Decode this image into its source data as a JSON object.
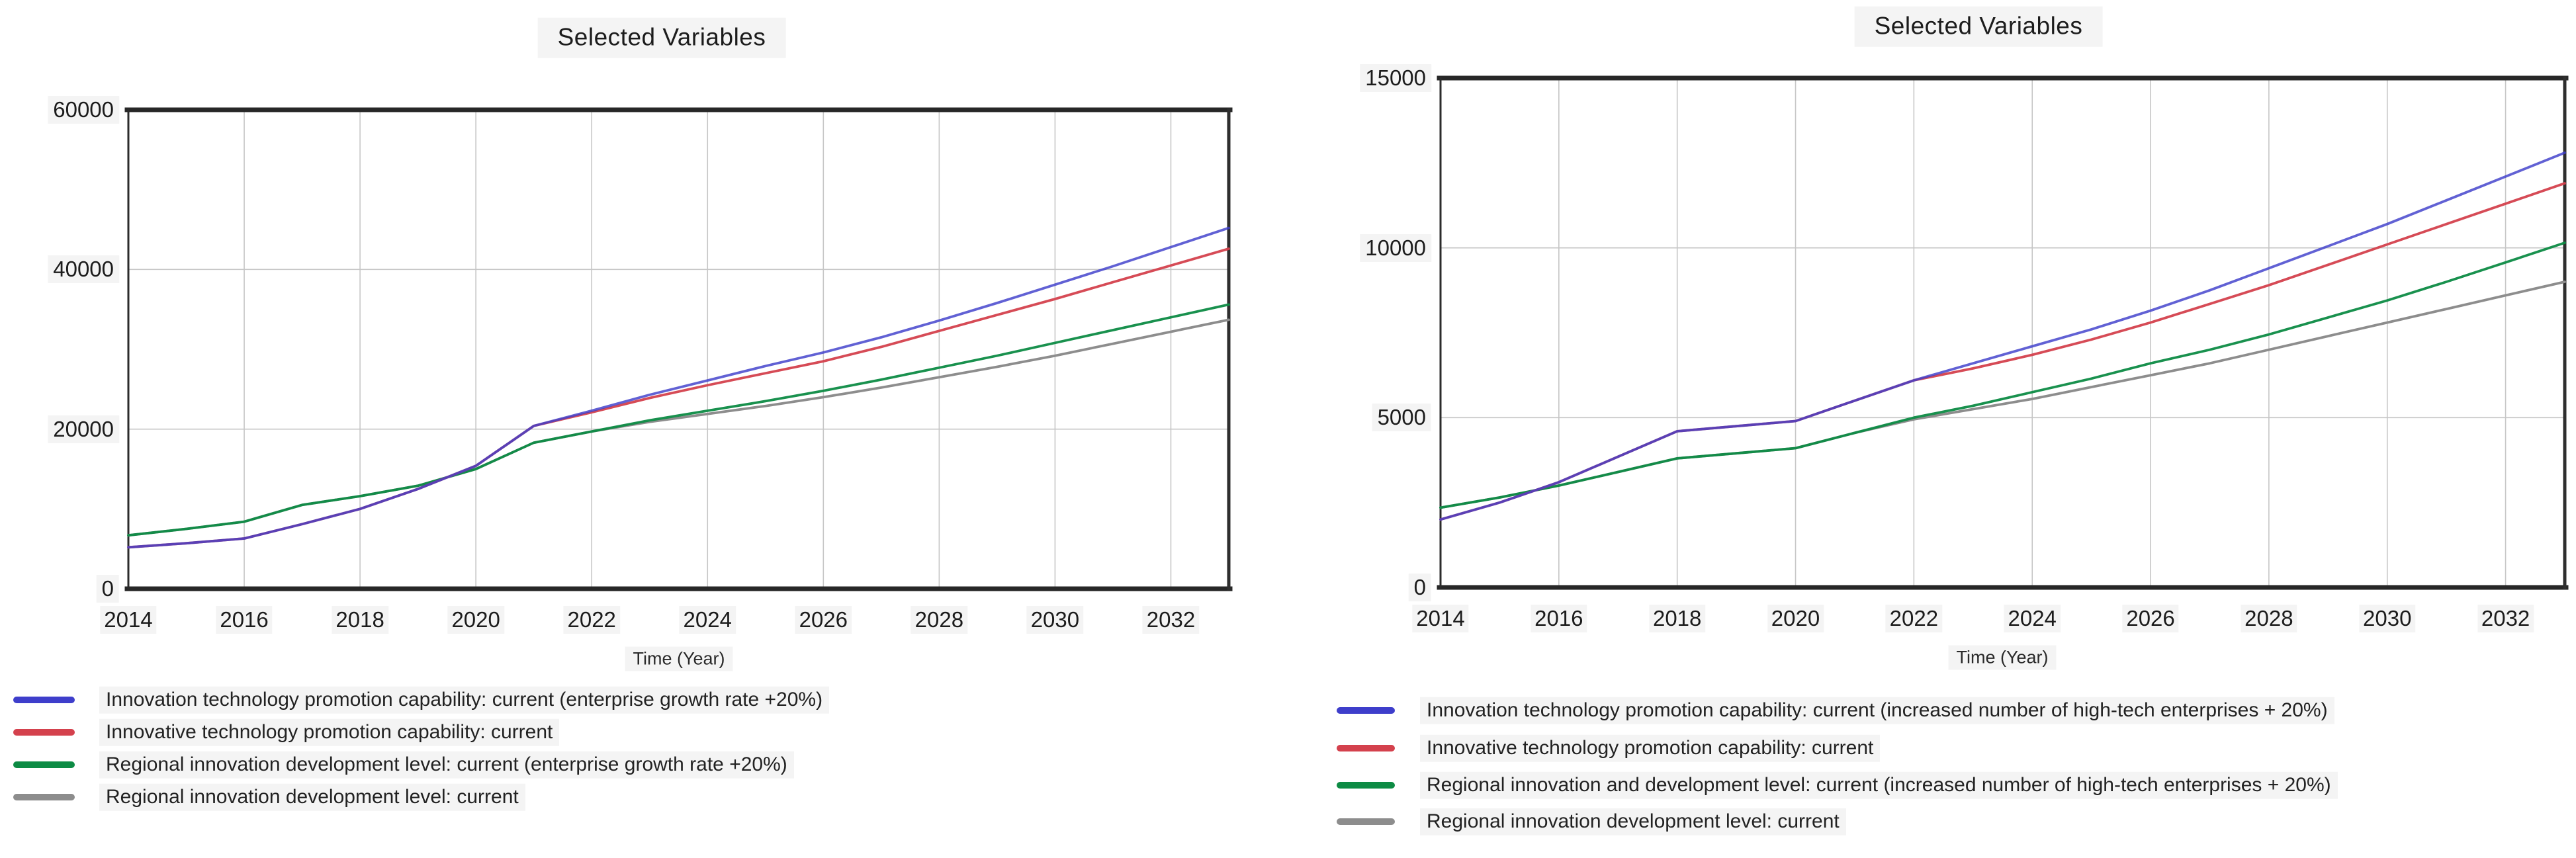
{
  "page": {
    "background": "#ffffff"
  },
  "chart_data": [
    {
      "type": "line",
      "title": "Selected Variables",
      "xlabel": "Time (Year)",
      "ylabel": "",
      "xlim": [
        2014,
        2033
      ],
      "ylim": [
        0,
        60000
      ],
      "x_ticks": [
        2014,
        2016,
        2018,
        2020,
        2022,
        2024,
        2026,
        2028,
        2030,
        2032
      ],
      "y_ticks": [
        0,
        20000,
        40000,
        60000
      ],
      "grid": true,
      "legend_position": "bottom-left",
      "x": [
        2014,
        2015,
        2016,
        2017,
        2018,
        2019,
        2020,
        2021,
        2022,
        2023,
        2024,
        2025,
        2026,
        2027,
        2028,
        2029,
        2030,
        2031,
        2032,
        2033
      ],
      "series": [
        {
          "name": "Innovation technology promotion capability: current (enterprise growth rate +20%)",
          "color": "#3e3ecb",
          "values": [
            5200,
            5700,
            6300,
            8100,
            10000,
            12500,
            15400,
            20400,
            22300,
            24300,
            26100,
            27900,
            29600,
            31500,
            33600,
            35800,
            38100,
            40400,
            42800,
            45200
          ]
        },
        {
          "name": "Innovative technology promotion capability: current",
          "color": "#d4414d",
          "values": [
            5200,
            5700,
            6300,
            8100,
            10000,
            12500,
            15400,
            20400,
            22100,
            23900,
            25500,
            27000,
            28500,
            30300,
            32300,
            34300,
            36300,
            38400,
            40500,
            42600
          ]
        },
        {
          "name": "Regional innovation development level: current (enterprise growth rate +20%)",
          "color": "#0d8b44",
          "values": [
            6700,
            7500,
            8400,
            10500,
            11600,
            12900,
            15000,
            18300,
            19700,
            21100,
            22300,
            23500,
            24800,
            26200,
            27700,
            29200,
            30800,
            32400,
            34000,
            35600
          ]
        },
        {
          "name": "Regional innovation development level: current",
          "color": "#8d8d8d",
          "values": [
            6700,
            7500,
            8400,
            10500,
            11600,
            12900,
            15000,
            18300,
            19700,
            20900,
            21900,
            22900,
            24000,
            25200,
            26500,
            27800,
            29200,
            30700,
            32200,
            33700
          ]
        }
      ]
    },
    {
      "type": "line",
      "title": "Selected Variables",
      "xlabel": "Time (Year)",
      "ylabel": "",
      "xlim": [
        2014,
        2033
      ],
      "ylim": [
        0,
        15000
      ],
      "x_ticks": [
        2014,
        2016,
        2018,
        2020,
        2022,
        2024,
        2026,
        2028,
        2030,
        2032
      ],
      "y_ticks": [
        0,
        5000,
        10000,
        15000
      ],
      "grid": true,
      "legend_position": "bottom-left",
      "x": [
        2014,
        2015,
        2016,
        2017,
        2018,
        2019,
        2020,
        2021,
        2022,
        2023,
        2024,
        2025,
        2026,
        2027,
        2028,
        2029,
        2030,
        2031,
        2032,
        2033
      ],
      "series": [
        {
          "name": "Innovation technology promotion capability: current (increased number of high-tech enterprises + 20%)",
          "color": "#3e3ecb",
          "values": [
            2000,
            2500,
            3100,
            3850,
            4600,
            4750,
            4900,
            5500,
            6100,
            6600,
            7100,
            7600,
            8150,
            8750,
            9400,
            10050,
            10700,
            11400,
            12100,
            12800
          ]
        },
        {
          "name": "Innovative technology promotion capability: current",
          "color": "#d4414d",
          "values": [
            2000,
            2500,
            3100,
            3850,
            4600,
            4750,
            4900,
            5500,
            6100,
            6450,
            6850,
            7300,
            7800,
            8350,
            8900,
            9500,
            10100,
            10700,
            11300,
            11900
          ]
        },
        {
          "name": "Regional innovation and development level: current (increased number of high-tech enterprises + 20%)",
          "color": "#0d8b44",
          "values": [
            2350,
            2650,
            3000,
            3400,
            3800,
            3950,
            4100,
            4550,
            5000,
            5350,
            5750,
            6150,
            6600,
            7000,
            7450,
            7950,
            8450,
            9000,
            9570,
            10150
          ]
        },
        {
          "name": "Regional innovation development level: current",
          "color": "#8d8d8d",
          "values": [
            2350,
            2650,
            3000,
            3400,
            3800,
            3950,
            4100,
            4550,
            4950,
            5250,
            5550,
            5900,
            6250,
            6600,
            7000,
            7400,
            7800,
            8200,
            8600,
            9000
          ]
        }
      ]
    }
  ]
}
